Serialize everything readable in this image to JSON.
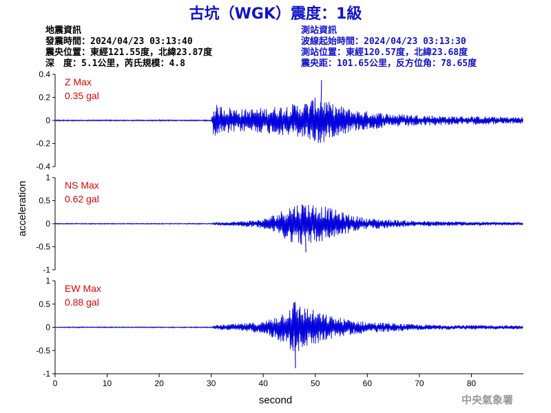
{
  "title": "古坑（WGK）震度：1級",
  "earthquake_info": {
    "heading": "地震資訊",
    "lines": [
      "發震時間：2024/04/23 03:13:40",
      "震央位置：東經121.55度，北緯23.87度",
      "深　度：5.1公里，芮氏規模：4.8"
    ]
  },
  "station_info": {
    "heading": "測站資訊",
    "lines": [
      "波線起始時間：2024/04/23 03:13:30",
      "測站位置：東經120.57度，北緯23.68度",
      "震央距：101.65公里，反方位角：78.65度"
    ]
  },
  "footer": "中央氣象署",
  "colors": {
    "title": "#1111cc",
    "station_text": "#1111cc",
    "trace": "#0000dd",
    "max_label": "#dd0000",
    "axis": "#000000",
    "footer": "#999999"
  },
  "chart_data": {
    "type": "line",
    "xlabel": "second",
    "ylabel": "acceleration",
    "xlim": [
      0,
      90
    ],
    "xticks": [
      0,
      10,
      20,
      30,
      40,
      50,
      60,
      70,
      80
    ],
    "grid": false,
    "series": [
      {
        "component": "Z",
        "max_label": "Z Max",
        "max_value": "0.35 gal",
        "ylim": [
          -0.4,
          0.4
        ],
        "yticks": [
          -0.4,
          -0.2,
          0,
          0.2,
          0.4
        ],
        "ytick_labels": [
          "-0.4",
          "-0.2",
          "0",
          "0.2",
          "0.4"
        ],
        "onset_s": 30.5,
        "peak_s": 51,
        "peak_value": 0.35,
        "envelope": [
          [
            0,
            0.005
          ],
          [
            30,
            0.005
          ],
          [
            30.5,
            0.14
          ],
          [
            32,
            0.13
          ],
          [
            36,
            0.1
          ],
          [
            40,
            0.11
          ],
          [
            45,
            0.14
          ],
          [
            48,
            0.16
          ],
          [
            51,
            0.22
          ],
          [
            53,
            0.15
          ],
          [
            58,
            0.09
          ],
          [
            65,
            0.06
          ],
          [
            75,
            0.04
          ],
          [
            90,
            0.03
          ]
        ]
      },
      {
        "component": "NS",
        "max_label": "NS Max",
        "max_value": "0.62 gal",
        "ylim": [
          -1,
          1
        ],
        "yticks": [
          -1,
          -0.5,
          0,
          0.5,
          1
        ],
        "ytick_labels": [
          "-1",
          "-0.5",
          "0",
          "0.5",
          "1"
        ],
        "onset_s": 30.5,
        "peak_s": 48,
        "peak_value": -0.62,
        "envelope": [
          [
            0,
            0.01
          ],
          [
            30,
            0.01
          ],
          [
            31,
            0.03
          ],
          [
            35,
            0.05
          ],
          [
            40,
            0.1
          ],
          [
            43,
            0.25
          ],
          [
            45,
            0.4
          ],
          [
            48,
            0.48
          ],
          [
            52,
            0.38
          ],
          [
            56,
            0.22
          ],
          [
            60,
            0.12
          ],
          [
            70,
            0.06
          ],
          [
            90,
            0.03
          ]
        ]
      },
      {
        "component": "EW",
        "max_label": "EW Max",
        "max_value": "0.88 gal",
        "ylim": [
          -1,
          1
        ],
        "yticks": [
          -1,
          -0.5,
          0,
          0.5,
          1
        ],
        "ytick_labels": [
          "-1",
          "-0.5",
          "0",
          "0.5",
          "1"
        ],
        "onset_s": 30.5,
        "peak_s": 46,
        "peak_value": -0.88,
        "envelope": [
          [
            0,
            0.01
          ],
          [
            30,
            0.01
          ],
          [
            31,
            0.05
          ],
          [
            35,
            0.08
          ],
          [
            40,
            0.12
          ],
          [
            44,
            0.35
          ],
          [
            46,
            0.6
          ],
          [
            48,
            0.45
          ],
          [
            52,
            0.28
          ],
          [
            56,
            0.18
          ],
          [
            60,
            0.12
          ],
          [
            70,
            0.06
          ],
          [
            90,
            0.04
          ]
        ]
      }
    ]
  }
}
